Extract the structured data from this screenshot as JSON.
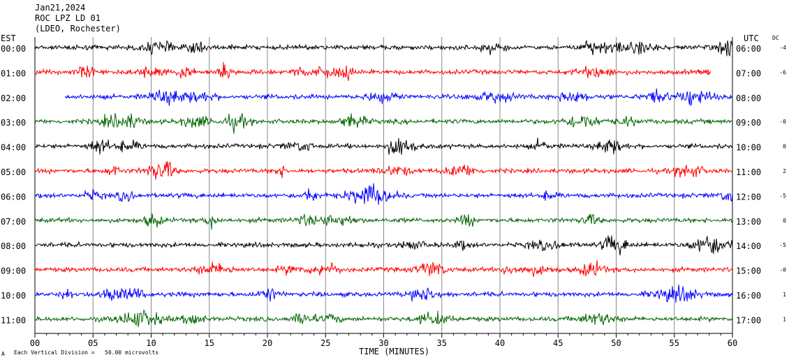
{
  "header": {
    "date": "Jan21,2024",
    "station": "ROC LPZ LD 01",
    "network": "(LDEO, Rochester)"
  },
  "left_timezone": "EST",
  "right_timezone": "UTC",
  "dc_label": "DC",
  "footer": {
    "glyph": "A",
    "scale_note": "Each Vertical Division =   50.00 microvolts"
  },
  "chart_data": {
    "type": "line",
    "title": "",
    "xlabel": "TIME (MINUTES)",
    "ylabel": "",
    "xlim": [
      0,
      60
    ],
    "x_ticks": [
      "00",
      "05",
      "10",
      "15",
      "20",
      "25",
      "30",
      "35",
      "40",
      "45",
      "50",
      "55",
      "60"
    ],
    "grid": true,
    "colors": [
      "#000000",
      "#ff0000",
      "#0000ff",
      "#006400"
    ],
    "rows": [
      {
        "est": "00:00",
        "utc": "06:00",
        "dc": "-4",
        "start_min": 0,
        "end_min": 60
      },
      {
        "est": "01:00",
        "utc": "07:00",
        "dc": "-6",
        "start_min": 0,
        "end_min": 58
      },
      {
        "est": "02:00",
        "utc": "08:00",
        "dc": "",
        "start_min": 2.6,
        "end_min": 60
      },
      {
        "est": "03:00",
        "utc": "09:00",
        "dc": "-0",
        "start_min": 0,
        "end_min": 60
      },
      {
        "est": "04:00",
        "utc": "10:00",
        "dc": "0",
        "start_min": 0,
        "end_min": 60
      },
      {
        "est": "05:00",
        "utc": "11:00",
        "dc": "2",
        "start_min": 0,
        "end_min": 60
      },
      {
        "est": "06:00",
        "utc": "12:00",
        "dc": "-5",
        "start_min": 0,
        "end_min": 60
      },
      {
        "est": "07:00",
        "utc": "13:00",
        "dc": "0",
        "start_min": 0,
        "end_min": 60
      },
      {
        "est": "08:00",
        "utc": "14:00",
        "dc": "-5",
        "start_min": 0,
        "end_min": 60
      },
      {
        "est": "09:00",
        "utc": "15:00",
        "dc": "-0",
        "start_min": 0,
        "end_min": 60
      },
      {
        "est": "10:00",
        "utc": "16:00",
        "dc": "1",
        "start_min": 0,
        "end_min": 60
      },
      {
        "est": "11:00",
        "utc": "17:00",
        "dc": "1",
        "start_min": 0,
        "end_min": 60
      }
    ]
  }
}
